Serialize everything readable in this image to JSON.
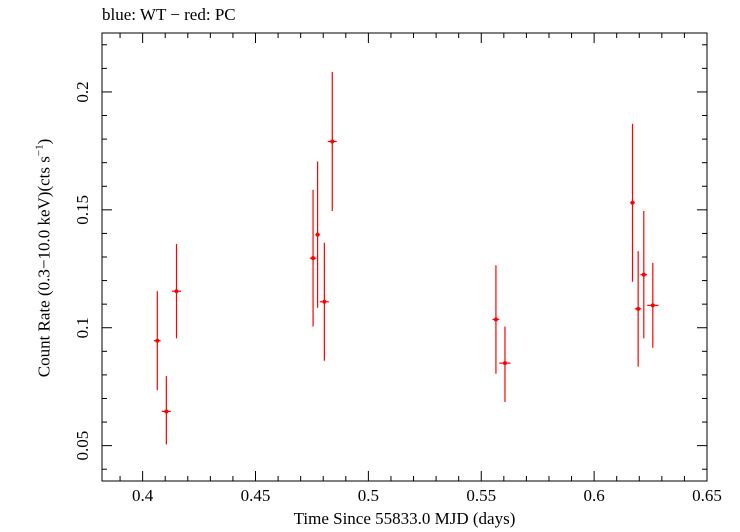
{
  "chart_data": {
    "type": "scatter",
    "title": "blue: WT − red: PC",
    "xlabel": "Time Since 55833.0 MJD (days)",
    "ylabel_main": "Count Rate (0.3−10.0 keV)(cts s",
    "ylabel_sup": "−1",
    "ylabel_end": ")",
    "xlim": [
      0.382,
      0.65
    ],
    "ylim": [
      0.035,
      0.225
    ],
    "xticks": [
      0.4,
      0.45,
      0.5,
      0.55,
      0.6,
      0.65
    ],
    "xtick_labels": [
      "0.4",
      "0.45",
      "0.5",
      "0.55",
      "0.6",
      "0.65"
    ],
    "yticks": [
      0.05,
      0.1,
      0.15,
      0.2
    ],
    "ytick_labels": [
      "0.05",
      "0.1",
      "0.15",
      "0.2"
    ],
    "grid": false,
    "series": [
      {
        "color": "#ff0000",
        "points": [
          {
            "x": 0.4065,
            "y": 0.0945,
            "xerr": 0.0015,
            "ylo": 0.0735,
            "yhi": 0.1155
          },
          {
            "x": 0.4105,
            "y": 0.0645,
            "xerr": 0.002,
            "ylo": 0.0505,
            "yhi": 0.0795
          },
          {
            "x": 0.415,
            "y": 0.1155,
            "xerr": 0.002,
            "ylo": 0.0955,
            "yhi": 0.1355
          },
          {
            "x": 0.4755,
            "y": 0.1295,
            "xerr": 0.0015,
            "ylo": 0.1005,
            "yhi": 0.1585
          },
          {
            "x": 0.4775,
            "y": 0.1395,
            "xerr": 0.001,
            "ylo": 0.1085,
            "yhi": 0.1705
          },
          {
            "x": 0.4805,
            "y": 0.111,
            "xerr": 0.002,
            "ylo": 0.086,
            "yhi": 0.136
          },
          {
            "x": 0.484,
            "y": 0.179,
            "xerr": 0.002,
            "ylo": 0.1495,
            "yhi": 0.2085
          },
          {
            "x": 0.5565,
            "y": 0.1035,
            "xerr": 0.0015,
            "ylo": 0.0805,
            "yhi": 0.1265
          },
          {
            "x": 0.5605,
            "y": 0.085,
            "xerr": 0.0025,
            "ylo": 0.0685,
            "yhi": 0.1005
          },
          {
            "x": 0.617,
            "y": 0.153,
            "xerr": 0.001,
            "ylo": 0.1195,
            "yhi": 0.1865
          },
          {
            "x": 0.6195,
            "y": 0.108,
            "xerr": 0.0015,
            "ylo": 0.0835,
            "yhi": 0.1325
          },
          {
            "x": 0.622,
            "y": 0.1225,
            "xerr": 0.0015,
            "ylo": 0.0955,
            "yhi": 0.1495
          },
          {
            "x": 0.626,
            "y": 0.1095,
            "xerr": 0.0025,
            "ylo": 0.0915,
            "yhi": 0.1275
          }
        ]
      }
    ]
  }
}
